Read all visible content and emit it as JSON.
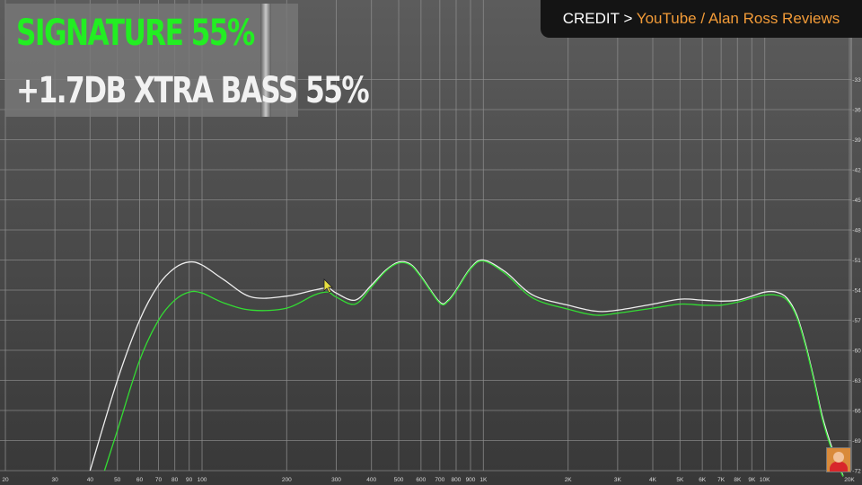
{
  "legend": {
    "line1": "SIGNATURE 55%",
    "line2": "+1.7DB XTRA BASS 55%"
  },
  "credit": {
    "prefix": "CREDIT",
    "separator": ">",
    "source": "YouTube / Alan Ross Reviews"
  },
  "colors": {
    "signature": "#33dd33",
    "xtra_bass": "#eeeeee",
    "legend_green": "#22ee22",
    "credit_orange": "#f29b38"
  },
  "chart_data": {
    "type": "line",
    "x_scale": "log",
    "xlim": [
      20,
      20000
    ],
    "ylim": [
      -72,
      -30
    ],
    "grid": true,
    "x_ticks": [
      20,
      30,
      40,
      50,
      60,
      70,
      80,
      90,
      100,
      200,
      300,
      400,
      500,
      600,
      700,
      800,
      900,
      1000,
      2000,
      3000,
      4000,
      5000,
      6000,
      7000,
      8000,
      9000,
      10000,
      20000
    ],
    "x_tick_labels": [
      "20",
      "30",
      "40",
      "50",
      "60",
      "70",
      "80",
      "90",
      "100",
      "200",
      "300",
      "400",
      "500",
      "600",
      "700",
      "800",
      "900",
      "1K",
      "2K",
      "3K",
      "4K",
      "5K",
      "6K",
      "7K",
      "8K",
      "9K",
      "10K",
      "20K"
    ],
    "y_ticks": [
      -33,
      -36,
      -39,
      -42,
      -45,
      -48,
      -51,
      -54,
      -57,
      -60,
      -63,
      -66,
      -69,
      -72
    ],
    "y_tick_labels": [
      "-33",
      "-36",
      "-39",
      "-42",
      "-45",
      "-48",
      "-51",
      "-54",
      "-57",
      "-60",
      "-63",
      "-66",
      "-69",
      "-72"
    ],
    "series": [
      {
        "name": "+1.7DB XTRA BASS 55%",
        "color": "#eeeeee",
        "x": [
          40,
          50,
          60,
          70,
          80,
          90,
          100,
          120,
          150,
          200,
          250,
          280,
          300,
          350,
          400,
          450,
          500,
          550,
          600,
          700,
          750,
          800,
          900,
          1000,
          1200,
          1500,
          2000,
          2500,
          3000,
          4000,
          5000,
          6000,
          7000,
          8000,
          9000,
          10000,
          11000,
          12000,
          13000,
          14000,
          15000,
          16000,
          17000,
          18000,
          19000
        ],
        "y": [
          -72,
          -63,
          -57,
          -53.5,
          -51.8,
          -51.2,
          -51.5,
          -53,
          -54.7,
          -54.6,
          -54,
          -53.8,
          -54.3,
          -55,
          -53.5,
          -52,
          -51.2,
          -51.4,
          -52.6,
          -55.2,
          -55,
          -54,
          -51.8,
          -51,
          -52.2,
          -54.5,
          -55.5,
          -56.1,
          -56,
          -55.4,
          -54.9,
          -55,
          -55.1,
          -55,
          -54.6,
          -54.2,
          -54.2,
          -54.8,
          -56.5,
          -59.5,
          -63,
          -66.5,
          -69,
          -71,
          -72.5
        ]
      },
      {
        "name": "SIGNATURE 55%",
        "color": "#33dd33",
        "x": [
          45,
          50,
          60,
          70,
          80,
          90,
          100,
          120,
          150,
          200,
          250,
          280,
          300,
          350,
          400,
          450,
          500,
          550,
          600,
          700,
          750,
          800,
          900,
          1000,
          1200,
          1500,
          2000,
          2500,
          3000,
          4000,
          5000,
          6000,
          7000,
          8000,
          9000,
          10000,
          11000,
          12000,
          13000,
          14000,
          15000,
          16000,
          17000,
          18000,
          19000
        ],
        "y": [
          -72,
          -68,
          -61,
          -57,
          -55,
          -54.2,
          -54.3,
          -55.3,
          -56,
          -55.8,
          -54.5,
          -54.2,
          -54.7,
          -55.4,
          -53.7,
          -52.1,
          -51.3,
          -51.5,
          -52.7,
          -55.3,
          -55.1,
          -54.1,
          -51.9,
          -51.1,
          -52.4,
          -54.8,
          -55.9,
          -56.5,
          -56.3,
          -55.8,
          -55.4,
          -55.5,
          -55.5,
          -55.2,
          -54.8,
          -54.5,
          -54.5,
          -55,
          -56.7,
          -59.7,
          -63.2,
          -66.8,
          -69.3,
          -71.2,
          -72.6
        ]
      }
    ]
  }
}
